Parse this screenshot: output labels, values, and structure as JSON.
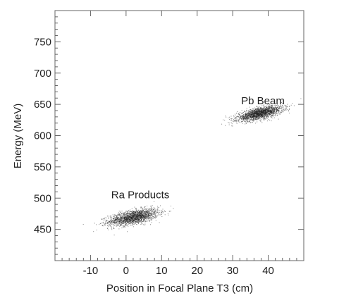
{
  "chart_data": {
    "type": "scatter",
    "title": "",
    "xlabel": "Position in Focal Plane T3 (cm)",
    "ylabel": "Energy (MeV)",
    "xlim": [
      -20,
      50
    ],
    "ylim": [
      400,
      800
    ],
    "xticks": [
      -10,
      0,
      10,
      20,
      30,
      40
    ],
    "yticks": [
      450,
      500,
      550,
      600,
      650,
      700,
      750
    ],
    "xtick_labels": [
      "-10",
      "0",
      "10",
      "20",
      "30",
      "40"
    ],
    "ytick_labels": [
      "450",
      "500",
      "550",
      "600",
      "650",
      "700",
      "750"
    ],
    "grid": false,
    "legend": "none",
    "series": [
      {
        "center_x": 2,
        "center_y": 470,
        "x_spread": 3.5,
        "y_spread": 5.5,
        "slope": 1.0,
        "color": "#222222"
      },
      {
        "center_x": 37.5,
        "center_y": 636,
        "x_spread": 3.2,
        "y_spread": 4.5,
        "slope": 1.2,
        "color": "#222222"
      }
    ],
    "annotations": [
      {
        "text": "Ra Products",
        "x": 4,
        "y": 500
      },
      {
        "text": "Pb Beam",
        "x": 38.5,
        "y": 650
      }
    ]
  }
}
